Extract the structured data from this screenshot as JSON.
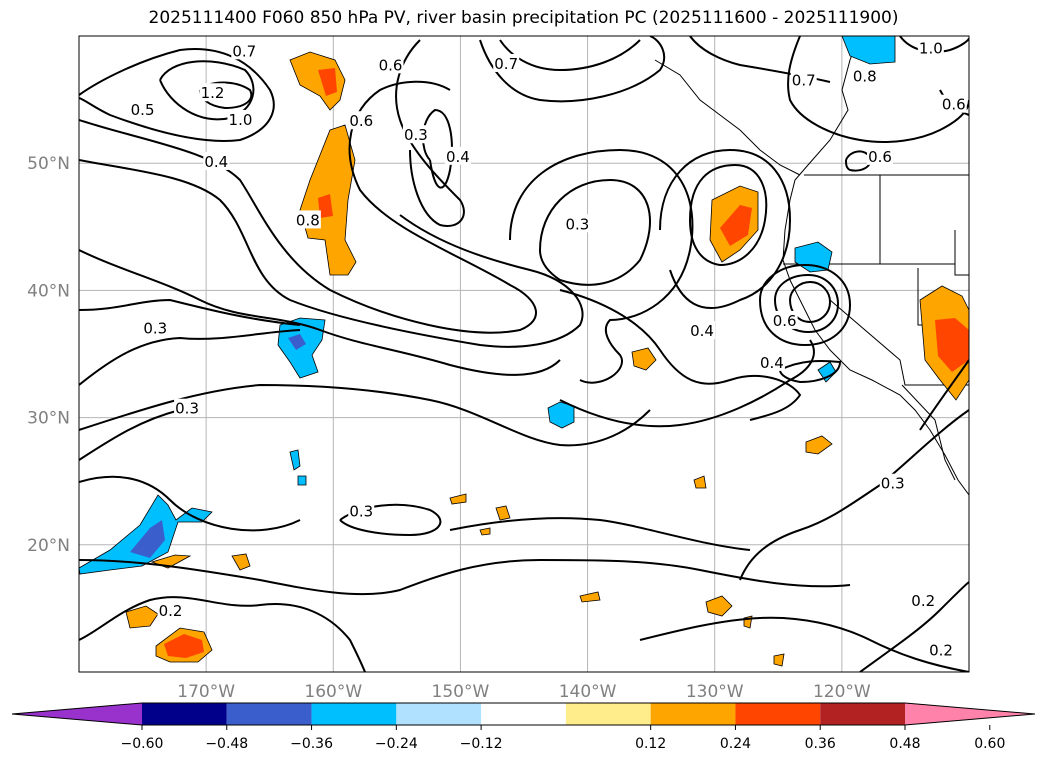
{
  "chart_data": {
    "type": "contour-map",
    "title": "2025111400 F060 850 hPa PV, river basin precipitation PC (2025111600 - 2025111900)",
    "lon_range": [
      -180,
      -110
    ],
    "lat_range": [
      10,
      60
    ],
    "lon_ticks": [
      {
        "value": -170,
        "label": "170°W"
      },
      {
        "value": -160,
        "label": "160°W"
      },
      {
        "value": -150,
        "label": "150°W"
      },
      {
        "value": -140,
        "label": "140°W"
      },
      {
        "value": -130,
        "label": "130°W"
      },
      {
        "value": -120,
        "label": "120°W"
      }
    ],
    "lat_ticks": [
      {
        "value": 50,
        "label": "50°N"
      },
      {
        "value": 40,
        "label": "40°N"
      },
      {
        "value": 30,
        "label": "30°N"
      },
      {
        "value": 20,
        "label": "20°N"
      }
    ],
    "gridlines": true,
    "contour_labels": [
      {
        "text": "0.7",
        "lon": -167,
        "lat": 58.8
      },
      {
        "text": "1.2",
        "lon": -169.5,
        "lat": 55.5
      },
      {
        "text": "0.5",
        "lon": -175,
        "lat": 54.2
      },
      {
        "text": "1.0",
        "lon": -167.3,
        "lat": 53.4
      },
      {
        "text": "0.4",
        "lon": -169.2,
        "lat": 50.1
      },
      {
        "text": "0.8",
        "lon": -162,
        "lat": 45.5
      },
      {
        "text": "0.6",
        "lon": -157.8,
        "lat": 53.3
      },
      {
        "text": "0.6",
        "lon": -155.5,
        "lat": 57.7
      },
      {
        "text": "0.3",
        "lon": -153.5,
        "lat": 52.2
      },
      {
        "text": "0.4",
        "lon": -150.2,
        "lat": 50.5
      },
      {
        "text": "0.7",
        "lon": -146.4,
        "lat": 57.8
      },
      {
        "text": "0.3",
        "lon": -140.8,
        "lat": 45.2
      },
      {
        "text": "0.4",
        "lon": -131,
        "lat": 36.8
      },
      {
        "text": "0.3",
        "lon": -174,
        "lat": 37
      },
      {
        "text": "0.3",
        "lon": -171.5,
        "lat": 30.7
      },
      {
        "text": "0.3",
        "lon": -157.8,
        "lat": 22.6
      },
      {
        "text": "0.2",
        "lon": -172.8,
        "lat": 14.8
      },
      {
        "text": "0.4",
        "lon": -125.5,
        "lat": 34.3
      },
      {
        "text": "0.6",
        "lon": -124.5,
        "lat": 37.6
      },
      {
        "text": "0.3",
        "lon": -116,
        "lat": 24.8
      },
      {
        "text": "0.2",
        "lon": -113.6,
        "lat": 15.6
      },
      {
        "text": "0.2",
        "lon": -112.2,
        "lat": 11.7
      },
      {
        "text": "0.7",
        "lon": -123,
        "lat": 56.5
      },
      {
        "text": "0.8",
        "lon": -118.2,
        "lat": 56.8
      },
      {
        "text": "1.0",
        "lon": -113,
        "lat": 59
      },
      {
        "text": "0.6",
        "lon": -111.2,
        "lat": 54.6
      },
      {
        "text": "0.6",
        "lon": -117,
        "lat": 50.5
      }
    ],
    "colorbar": {
      "ticks": [
        "−0.60",
        "−0.48",
        "−0.36",
        "−0.24",
        "−0.12",
        "0.12",
        "0.24",
        "0.36",
        "0.48",
        "0.60"
      ],
      "colors": [
        "#9932cc",
        "#00008b",
        "#3a5fcd",
        "#00bfff",
        "#b0e2ff",
        "#ffffff",
        "#ffec8b",
        "#ffa500",
        "#ff4500",
        "#b22222",
        "#ff82ab"
      ],
      "extend": "both"
    }
  }
}
